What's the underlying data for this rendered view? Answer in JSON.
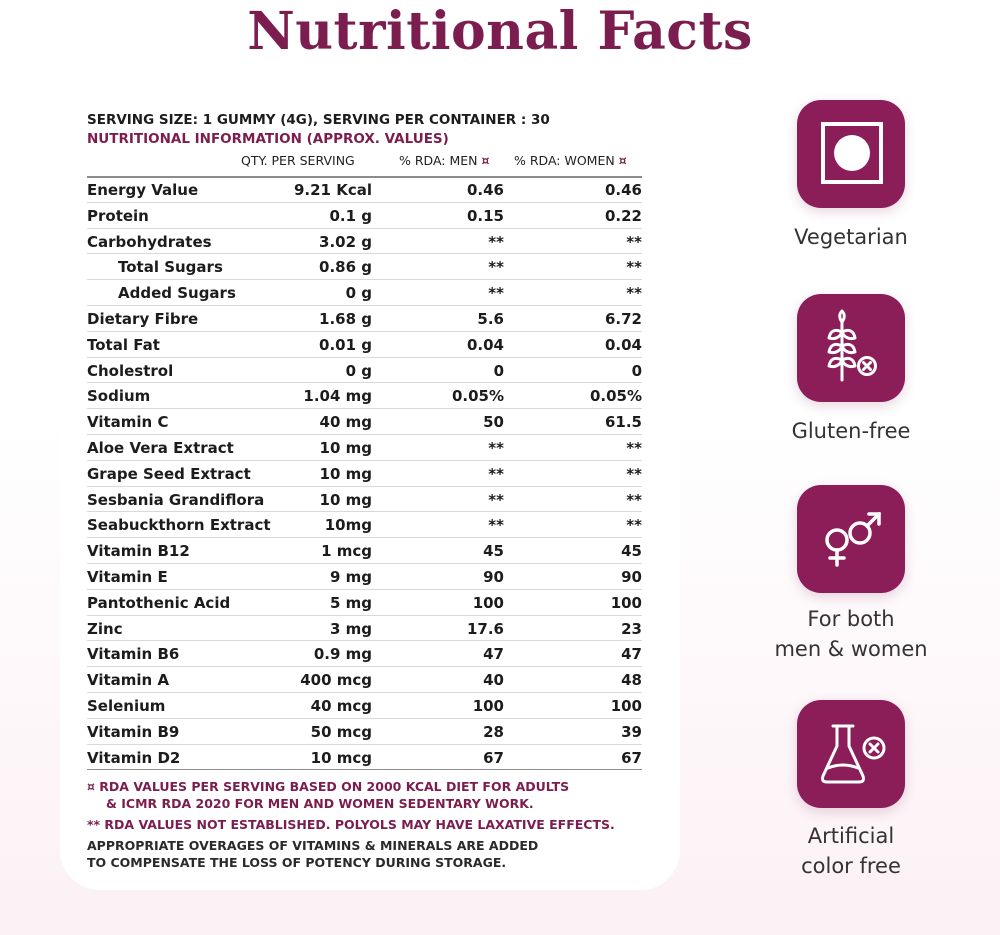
{
  "title": "Nutritional Facts",
  "serving": "SERVING SIZE: 1 GUMMY (4G), SERVING PER CONTAINER : 30",
  "info_title": "NUTRITIONAL INFORMATION (APPROX. VALUES)",
  "columns": {
    "qty": "QTY. PER SERVING",
    "men": "% RDA: MEN",
    "women": "% RDA: WOMEN",
    "mark": "¤"
  },
  "rows": [
    {
      "name": "Energy Value",
      "qty": "9.21 Kcal",
      "men": "0.46",
      "women": "0.46"
    },
    {
      "name": "Protein",
      "qty": "0.1 g",
      "men": "0.15",
      "women": "0.22"
    },
    {
      "name": "Carbohydrates",
      "qty": "3.02 g",
      "men": "**",
      "women": "**"
    },
    {
      "name": "Total Sugars",
      "qty": "0.86 g",
      "men": "**",
      "women": "**"
    },
    {
      "name": "Added Sugars",
      "qty": "0 g",
      "men": "**",
      "women": "**"
    },
    {
      "name": "Dietary Fibre",
      "qty": "1.68 g",
      "men": "5.6",
      "women": "6.72"
    },
    {
      "name": "Total Fat",
      "qty": "0.01 g",
      "men": "0.04",
      "women": "0.04"
    },
    {
      "name": "Cholestrol",
      "qty": "0 g",
      "men": "0",
      "women": "0"
    },
    {
      "name": "Sodium",
      "qty": "1.04 mg",
      "men": "0.05%",
      "women": "0.05%"
    },
    {
      "name": "Vitamin C",
      "qty": "40 mg",
      "men": "50",
      "women": "61.5"
    },
    {
      "name": "Aloe Vera Extract",
      "qty": "10 mg",
      "men": "**",
      "women": "**"
    },
    {
      "name": "Grape Seed Extract",
      "qty": "10 mg",
      "men": "**",
      "women": "**"
    },
    {
      "name": "Sesbania Grandiflora",
      "qty": "10 mg",
      "men": "**",
      "women": "**"
    },
    {
      "name": "Seabuckthorn Extract",
      "qty": "10mg",
      "men": "**",
      "women": "**"
    },
    {
      "name": "Vitamin B12",
      "qty": "1 mcg",
      "men": "45",
      "women": "45"
    },
    {
      "name": "Vitamin E",
      "qty": "9 mg",
      "men": "90",
      "women": "90"
    },
    {
      "name": "Pantothenic Acid",
      "qty": "5 mg",
      "men": "100",
      "women": "100"
    },
    {
      "name": "Zinc",
      "qty": "3 mg",
      "men": "17.6",
      "women": "23"
    },
    {
      "name": "Vitamin B6",
      "qty": "0.9 mg",
      "men": "47",
      "women": "47"
    },
    {
      "name": "Vitamin A",
      "qty": "400 mcg",
      "men": "40",
      "women": "48"
    },
    {
      "name": "Selenium",
      "qty": "40 mcg",
      "men": "100",
      "women": "100"
    },
    {
      "name": "Vitamin B9",
      "qty": "50 mcg",
      "men": "28",
      "women": "39"
    },
    {
      "name": "Vitamin D2",
      "qty": "10 mcg",
      "men": "67",
      "women": "67"
    }
  ],
  "footnotes": {
    "rda_line1": "¤ RDA VALUES PER SERVING BASED ON 2000 KCAL DIET FOR ADULTS",
    "rda_line2": "& ICMR RDA 2020 FOR MEN AND WOMEN SEDENTARY WORK.",
    "not_established": "** RDA VALUES NOT ESTABLISHED. POLYOLS MAY HAVE LAXATIVE EFFECTS.",
    "overages_line1": "APPROPRIATE OVERAGES OF VITAMINS & MINERALS ARE ADDED",
    "overages_line2": "TO COMPENSATE THE LOSS OF POTENCY DURING STORAGE."
  },
  "badges": [
    {
      "icon": "vegetarian-icon",
      "label_lines": [
        "Vegetarian"
      ]
    },
    {
      "icon": "gluten-free-icon",
      "label_lines": [
        "Gluten-free"
      ]
    },
    {
      "icon": "gender-symbols-icon",
      "label_lines": [
        "For both",
        "men & women"
      ]
    },
    {
      "icon": "artificial-color-free-icon",
      "label_lines": [
        "Artificial",
        "color free"
      ]
    }
  ],
  "colors": {
    "brand": "#8b1e58",
    "title": "#7b1d4e",
    "rule": "#d9d9d9"
  }
}
